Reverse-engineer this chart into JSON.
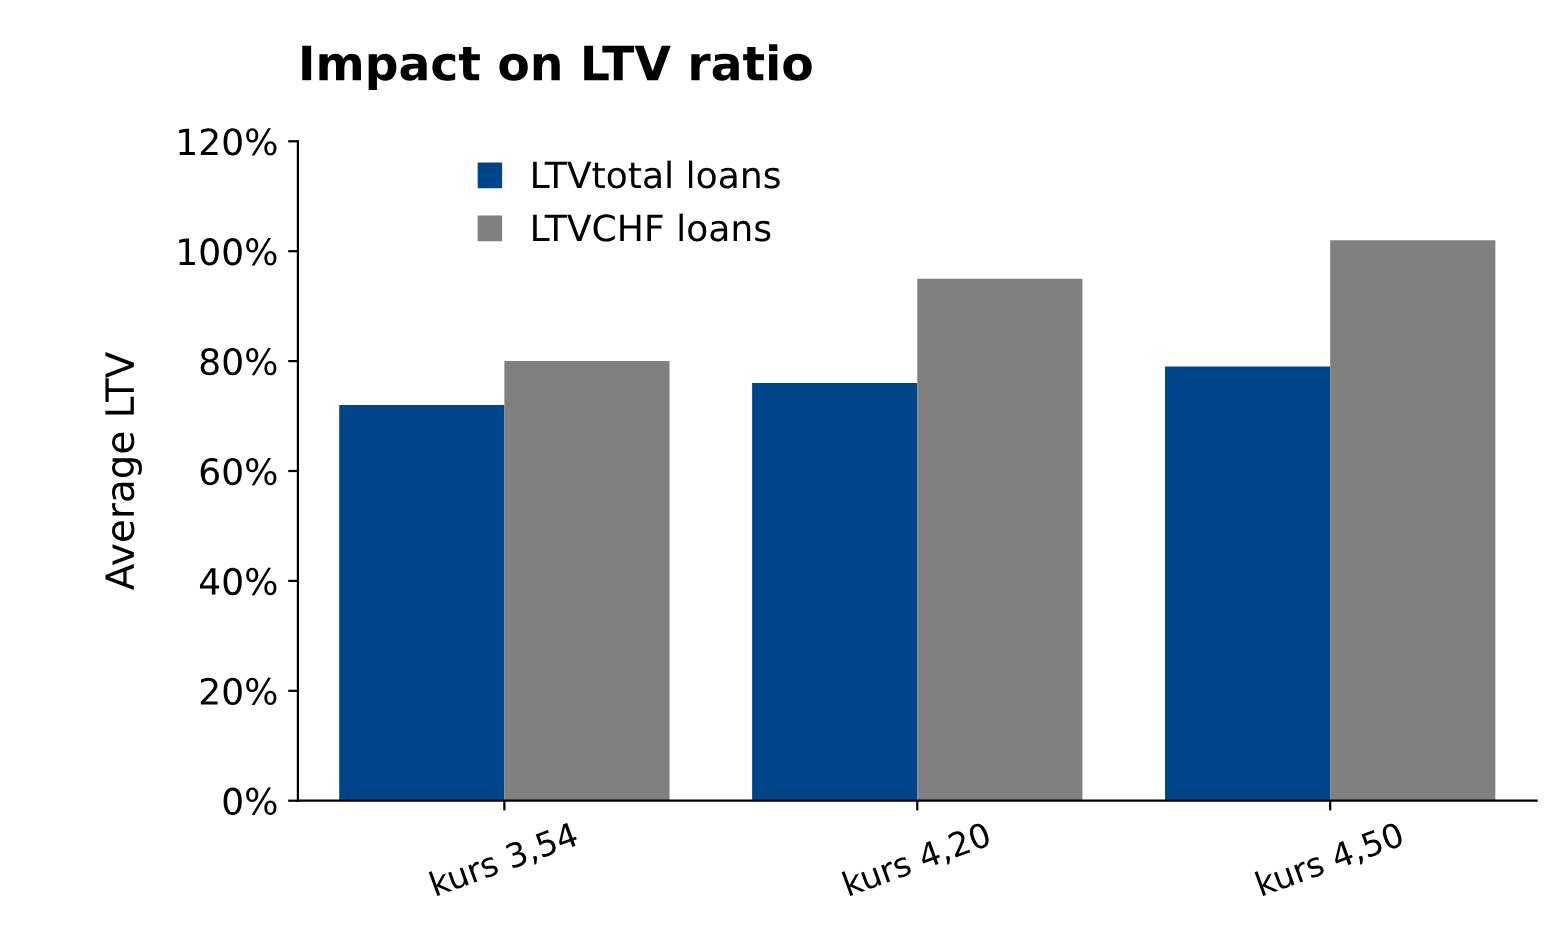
{
  "chart_data": {
    "type": "bar",
    "title": "Impact on LTV ratio",
    "ylabel": "Average LTV",
    "categories": [
      "kurs 3,54",
      "kurs 4,20",
      "kurs 4,50"
    ],
    "series": [
      {
        "name": "LTVtotal loans",
        "color": "#004489",
        "values": [
          72,
          76,
          79
        ]
      },
      {
        "name": "LTVCHF loans",
        "color": "#808080",
        "values": [
          80,
          95,
          102
        ]
      }
    ],
    "ylim": [
      0,
      120
    ],
    "yticks": [
      {
        "value": 0,
        "label": "0%"
      },
      {
        "value": 20,
        "label": "20%"
      },
      {
        "value": 40,
        "label": "40%"
      },
      {
        "value": 60,
        "label": "60%"
      },
      {
        "value": 80,
        "label": "80%"
      },
      {
        "value": 100,
        "label": "100%"
      },
      {
        "value": 120,
        "label": "120%"
      }
    ],
    "legend": "top left",
    "grid": false
  }
}
